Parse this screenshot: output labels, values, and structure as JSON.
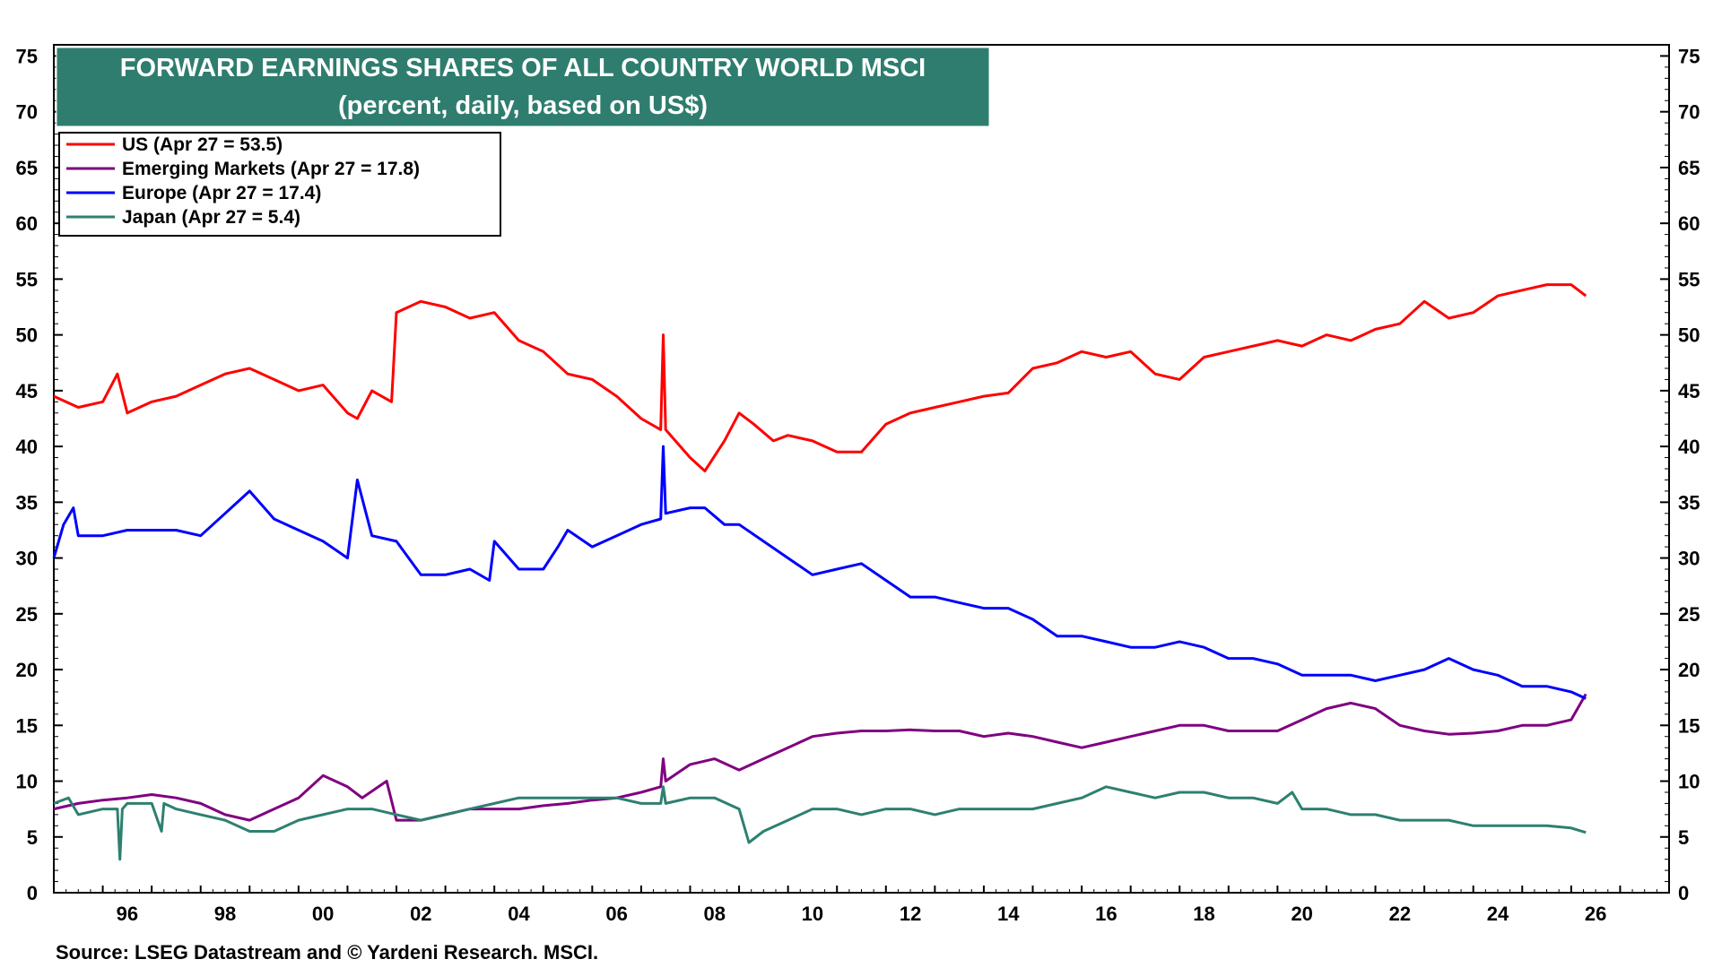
{
  "chart_data": {
    "type": "line",
    "title": "FORWARD EARNINGS SHARES OF ALL COUNTRY WORLD MSCI",
    "subtitle": "(percent, daily, based on US$)",
    "source": "Source: LSEG Datastream and © Yardeni Research. MSCI.",
    "xlim": [
      1995,
      2028
    ],
    "ylim": [
      0,
      76
    ],
    "x_ticks": [
      1996,
      1998,
      2000,
      2002,
      2004,
      2006,
      2008,
      2010,
      2012,
      2014,
      2016,
      2018,
      2020,
      2022,
      2024,
      2026
    ],
    "x_tick_labels": [
      "96",
      "98",
      "00",
      "02",
      "04",
      "06",
      "08",
      "10",
      "12",
      "14",
      "16",
      "18",
      "20",
      "22",
      "24",
      "26"
    ],
    "y_ticks": [
      0,
      5,
      10,
      15,
      20,
      25,
      30,
      35,
      40,
      45,
      50,
      55,
      60,
      65,
      70,
      75
    ],
    "y_tick_labels": [
      "0",
      "5",
      "10",
      "15",
      "20",
      "25",
      "30",
      "35",
      "40",
      "45",
      "50",
      "55",
      "60",
      "65",
      "70",
      "75"
    ],
    "legend_position": "top-left",
    "series": [
      {
        "name": "US (Apr 27 = 53.5)",
        "color": "#ff0000",
        "x": [
          1995.0,
          1995.5,
          1996.0,
          1996.3,
          1996.5,
          1997.0,
          1997.5,
          1998.0,
          1998.5,
          1999.0,
          1999.5,
          2000.0,
          2000.5,
          2001.0,
          2001.2,
          2001.5,
          2001.9,
          2002.0,
          2002.5,
          2003.0,
          2003.5,
          2004.0,
          2004.5,
          2005.0,
          2005.5,
          2006.0,
          2006.5,
          2007.0,
          2007.4,
          2007.45,
          2007.5,
          2008.0,
          2008.3,
          2008.7,
          2009.0,
          2009.3,
          2009.7,
          2010.0,
          2010.5,
          2011.0,
          2011.5,
          2012.0,
          2012.5,
          2013.0,
          2013.5,
          2014.0,
          2014.5,
          2015.0,
          2015.5,
          2016.0,
          2016.5,
          2017.0,
          2017.5,
          2018.0,
          2018.5,
          2019.0,
          2019.5,
          2020.0,
          2020.5,
          2021.0,
          2021.5,
          2022.0,
          2022.5,
          2023.0,
          2023.5,
          2024.0,
          2024.5,
          2025.0,
          2025.5,
          2026.0,
          2026.3
        ],
        "values": [
          44.5,
          43.5,
          44.0,
          46.5,
          43.0,
          44.0,
          44.5,
          45.5,
          46.5,
          47.0,
          46.0,
          45.0,
          45.5,
          43.0,
          42.5,
          45.0,
          44.0,
          52.0,
          53.0,
          52.5,
          51.5,
          52.0,
          49.5,
          48.5,
          46.5,
          46.0,
          44.5,
          42.5,
          41.5,
          50.0,
          41.5,
          39.0,
          37.8,
          40.5,
          43.0,
          42.0,
          40.5,
          41.0,
          40.5,
          39.5,
          39.5,
          42.0,
          43.0,
          43.5,
          44.0,
          44.5,
          44.8,
          47.0,
          47.5,
          48.5,
          48.0,
          48.5,
          46.5,
          46.0,
          48.0,
          48.5,
          49.0,
          49.5,
          49.0,
          50.0,
          49.5,
          50.5,
          51.0,
          53.0,
          51.5,
          52.0,
          53.5,
          54.0,
          54.5,
          54.5,
          53.5
        ]
      },
      {
        "name": "Emerging Markets (Apr 27 = 17.8)",
        "color": "#800080",
        "x": [
          1995.0,
          1995.5,
          1996.0,
          1996.5,
          1997.0,
          1997.5,
          1998.0,
          1998.5,
          1999.0,
          1999.5,
          2000.0,
          2000.5,
          2001.0,
          2001.3,
          2001.8,
          2002.0,
          2002.5,
          2003.0,
          2003.5,
          2004.0,
          2004.5,
          2005.0,
          2005.5,
          2006.0,
          2006.5,
          2007.0,
          2007.4,
          2007.45,
          2007.5,
          2008.0,
          2008.5,
          2009.0,
          2009.5,
          2010.0,
          2010.5,
          2011.0,
          2011.5,
          2012.0,
          2012.5,
          2013.0,
          2013.5,
          2014.0,
          2014.5,
          2015.0,
          2015.5,
          2016.0,
          2016.5,
          2017.0,
          2017.5,
          2018.0,
          2018.5,
          2019.0,
          2019.5,
          2020.0,
          2020.5,
          2021.0,
          2021.5,
          2022.0,
          2022.5,
          2023.0,
          2023.5,
          2024.0,
          2024.5,
          2025.0,
          2025.5,
          2026.0,
          2026.3
        ],
        "values": [
          7.5,
          8.0,
          8.3,
          8.5,
          8.8,
          8.5,
          8.0,
          7.0,
          6.5,
          7.5,
          8.5,
          10.5,
          9.5,
          8.5,
          10.0,
          6.5,
          6.5,
          7.0,
          7.5,
          7.5,
          7.5,
          7.8,
          8.0,
          8.3,
          8.5,
          9.0,
          9.5,
          12.0,
          10.0,
          11.5,
          12.0,
          11.0,
          12.0,
          13.0,
          14.0,
          14.3,
          14.5,
          14.5,
          14.6,
          14.5,
          14.5,
          14.0,
          14.3,
          14.0,
          13.5,
          13.0,
          13.5,
          14.0,
          14.5,
          15.0,
          15.0,
          14.5,
          14.5,
          14.5,
          15.5,
          16.5,
          17.0,
          16.5,
          15.0,
          14.5,
          14.2,
          14.3,
          14.5,
          15.0,
          15.0,
          15.5,
          17.8
        ]
      },
      {
        "name": "Europe (Apr 27 = 17.4)",
        "color": "#0000ff",
        "x": [
          1995.0,
          1995.2,
          1995.4,
          1995.5,
          1996.0,
          1996.5,
          1997.0,
          1997.5,
          1998.0,
          1998.5,
          1999.0,
          1999.5,
          2000.0,
          2000.5,
          2001.0,
          2001.2,
          2001.5,
          2002.0,
          2002.5,
          2003.0,
          2003.5,
          2003.9,
          2004.0,
          2004.5,
          2005.0,
          2005.3,
          2005.5,
          2006.0,
          2006.5,
          2007.0,
          2007.4,
          2007.45,
          2007.5,
          2008.0,
          2008.3,
          2008.7,
          2009.0,
          2009.5,
          2010.0,
          2010.5,
          2011.0,
          2011.5,
          2012.0,
          2012.5,
          2013.0,
          2013.5,
          2014.0,
          2014.5,
          2015.0,
          2015.5,
          2016.0,
          2016.5,
          2017.0,
          2017.5,
          2018.0,
          2018.5,
          2019.0,
          2019.5,
          2020.0,
          2020.5,
          2021.0,
          2021.5,
          2022.0,
          2022.5,
          2023.0,
          2023.5,
          2024.0,
          2024.5,
          2025.0,
          2025.5,
          2026.0,
          2026.3
        ],
        "values": [
          30.0,
          33.0,
          34.5,
          32.0,
          32.0,
          32.5,
          32.5,
          32.5,
          32.0,
          34.0,
          36.0,
          33.5,
          32.5,
          31.5,
          30.0,
          37.0,
          32.0,
          31.5,
          28.5,
          28.5,
          29.0,
          28.0,
          31.5,
          29.0,
          29.0,
          31.0,
          32.5,
          31.0,
          32.0,
          33.0,
          33.5,
          40.0,
          34.0,
          34.5,
          34.5,
          33.0,
          33.0,
          31.5,
          30.0,
          28.5,
          29.0,
          29.5,
          28.0,
          26.5,
          26.5,
          26.0,
          25.5,
          25.5,
          24.5,
          23.0,
          23.0,
          22.5,
          22.0,
          22.0,
          22.5,
          22.0,
          21.0,
          21.0,
          20.5,
          19.5,
          19.5,
          19.5,
          19.0,
          19.5,
          20.0,
          21.0,
          20.0,
          19.5,
          18.5,
          18.5,
          18.0,
          17.4
        ]
      },
      {
        "name": "Japan (Apr 27 = 5.4)",
        "color": "#2e8070",
        "x": [
          1995.0,
          1995.3,
          1995.5,
          1996.0,
          1996.3,
          1996.35,
          1996.4,
          1996.5,
          1997.0,
          1997.2,
          1997.25,
          1997.5,
          1998.0,
          1998.5,
          1999.0,
          1999.5,
          2000.0,
          2000.5,
          2001.0,
          2001.5,
          2002.0,
          2002.5,
          2003.0,
          2003.5,
          2004.0,
          2004.5,
          2005.0,
          2005.5,
          2006.0,
          2006.5,
          2007.0,
          2007.4,
          2007.45,
          2007.5,
          2008.0,
          2008.5,
          2009.0,
          2009.2,
          2009.5,
          2010.0,
          2010.5,
          2011.0,
          2011.5,
          2012.0,
          2012.5,
          2013.0,
          2013.5,
          2014.0,
          2014.5,
          2015.0,
          2015.5,
          2016.0,
          2016.5,
          2017.0,
          2017.5,
          2018.0,
          2018.5,
          2019.0,
          2019.5,
          2020.0,
          2020.3,
          2020.5,
          2021.0,
          2021.5,
          2022.0,
          2022.5,
          2023.0,
          2023.5,
          2024.0,
          2024.5,
          2025.0,
          2025.5,
          2026.0,
          2026.3
        ],
        "values": [
          8.0,
          8.5,
          7.0,
          7.5,
          7.5,
          3.0,
          7.5,
          8.0,
          8.0,
          5.5,
          8.0,
          7.5,
          7.0,
          6.5,
          5.5,
          5.5,
          6.5,
          7.0,
          7.5,
          7.5,
          7.0,
          6.5,
          7.0,
          7.5,
          8.0,
          8.5,
          8.5,
          8.5,
          8.5,
          8.5,
          8.0,
          8.0,
          9.5,
          8.0,
          8.5,
          8.5,
          7.5,
          4.5,
          5.5,
          6.5,
          7.5,
          7.5,
          7.0,
          7.5,
          7.5,
          7.0,
          7.5,
          7.5,
          7.5,
          7.5,
          8.0,
          8.5,
          9.5,
          9.0,
          8.5,
          9.0,
          9.0,
          8.5,
          8.5,
          8.0,
          9.0,
          7.5,
          7.5,
          7.0,
          7.0,
          6.5,
          6.5,
          6.5,
          6.0,
          6.0,
          6.0,
          6.0,
          5.8,
          5.4
        ]
      }
    ]
  }
}
